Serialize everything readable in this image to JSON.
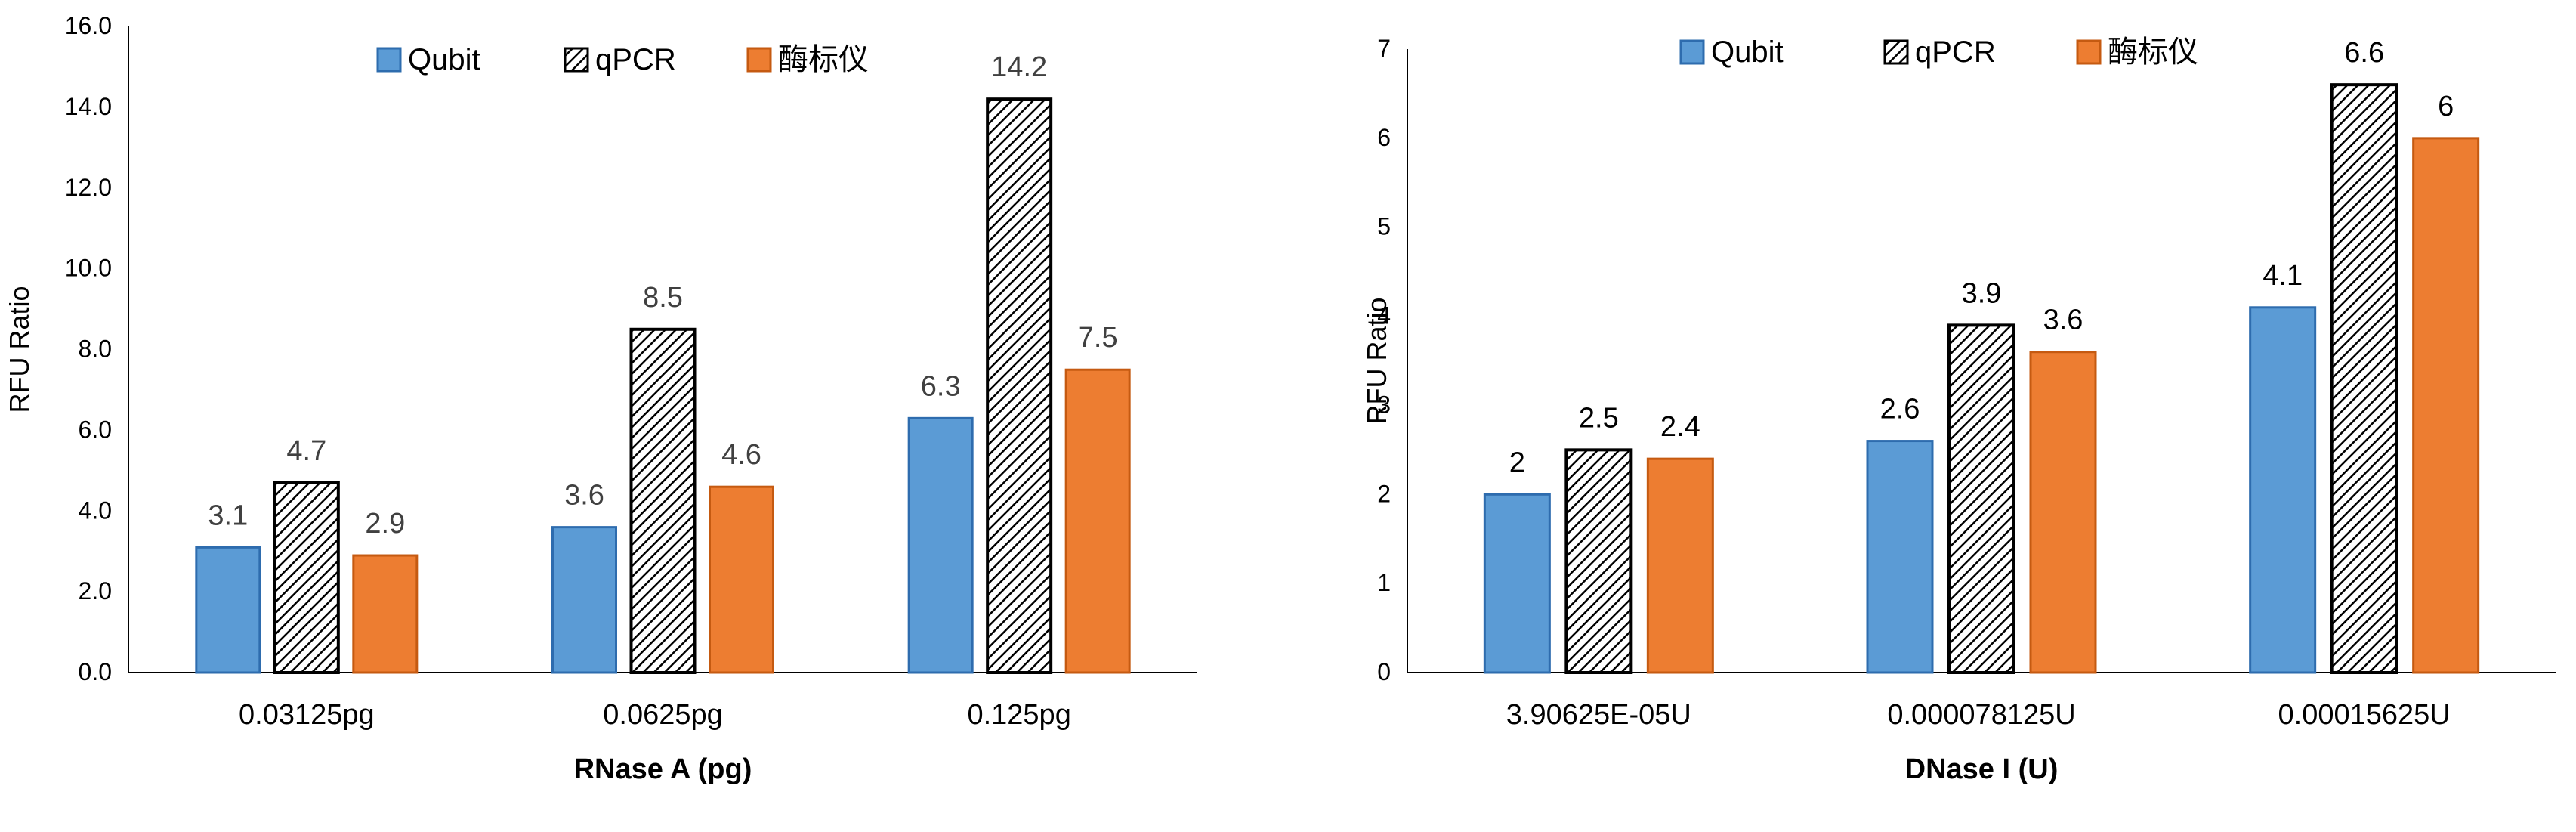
{
  "chart_data": [
    {
      "type": "bar",
      "title": "",
      "xlabel": "RNase A (pg)",
      "ylabel": "RFU Ratio",
      "categories": [
        "0.03125pg",
        "0.0625pg",
        "0.125pg"
      ],
      "ylim": [
        0,
        16
      ],
      "yticks": [
        "0.0",
        "2.0",
        "4.0",
        "6.0",
        "8.0",
        "10.0",
        "12.0",
        "14.0",
        "16.0"
      ],
      "legend_position": "top",
      "grid": false,
      "series": [
        {
          "name": "Qubit",
          "color": "#5b9bd5",
          "pattern": "solid",
          "values": [
            3.1,
            3.6,
            6.3
          ],
          "labels": [
            "3.1",
            "3.6",
            "6.3"
          ]
        },
        {
          "name": "qPCR",
          "color": "#000000",
          "pattern": "hatch",
          "values": [
            4.7,
            8.5,
            14.2
          ],
          "labels": [
            "4.7",
            "8.5",
            "14.2"
          ]
        },
        {
          "name": "酶标仪",
          "color": "#ed7d31",
          "pattern": "solid",
          "values": [
            2.9,
            4.6,
            7.5
          ],
          "labels": [
            "2.9",
            "4.6",
            "7.5"
          ]
        }
      ]
    },
    {
      "type": "bar",
      "title": "",
      "xlabel": "DNase I (U)",
      "ylabel": "RFU Ratio",
      "categories": [
        "3.90625E-05U",
        "0.000078125U",
        "0.00015625U"
      ],
      "ylim": [
        0,
        7
      ],
      "yticks": [
        "0",
        "1",
        "2",
        "3",
        "4",
        "5",
        "6",
        "7"
      ],
      "legend_position": "top",
      "grid": false,
      "series": [
        {
          "name": "Qubit",
          "color": "#5b9bd5",
          "pattern": "solid",
          "values": [
            2.0,
            2.6,
            4.1
          ],
          "labels": [
            "2",
            "2.6",
            "4.1"
          ]
        },
        {
          "name": "qPCR",
          "color": "#000000",
          "pattern": "hatch",
          "values": [
            2.5,
            3.9,
            6.6
          ],
          "labels": [
            "2.5",
            "3.9",
            "6.6"
          ]
        },
        {
          "name": "酶标仪",
          "color": "#ed7d31",
          "pattern": "solid",
          "values": [
            2.4,
            3.6,
            6.0
          ],
          "labels": [
            "2.4",
            "3.6",
            "6"
          ]
        }
      ]
    }
  ]
}
